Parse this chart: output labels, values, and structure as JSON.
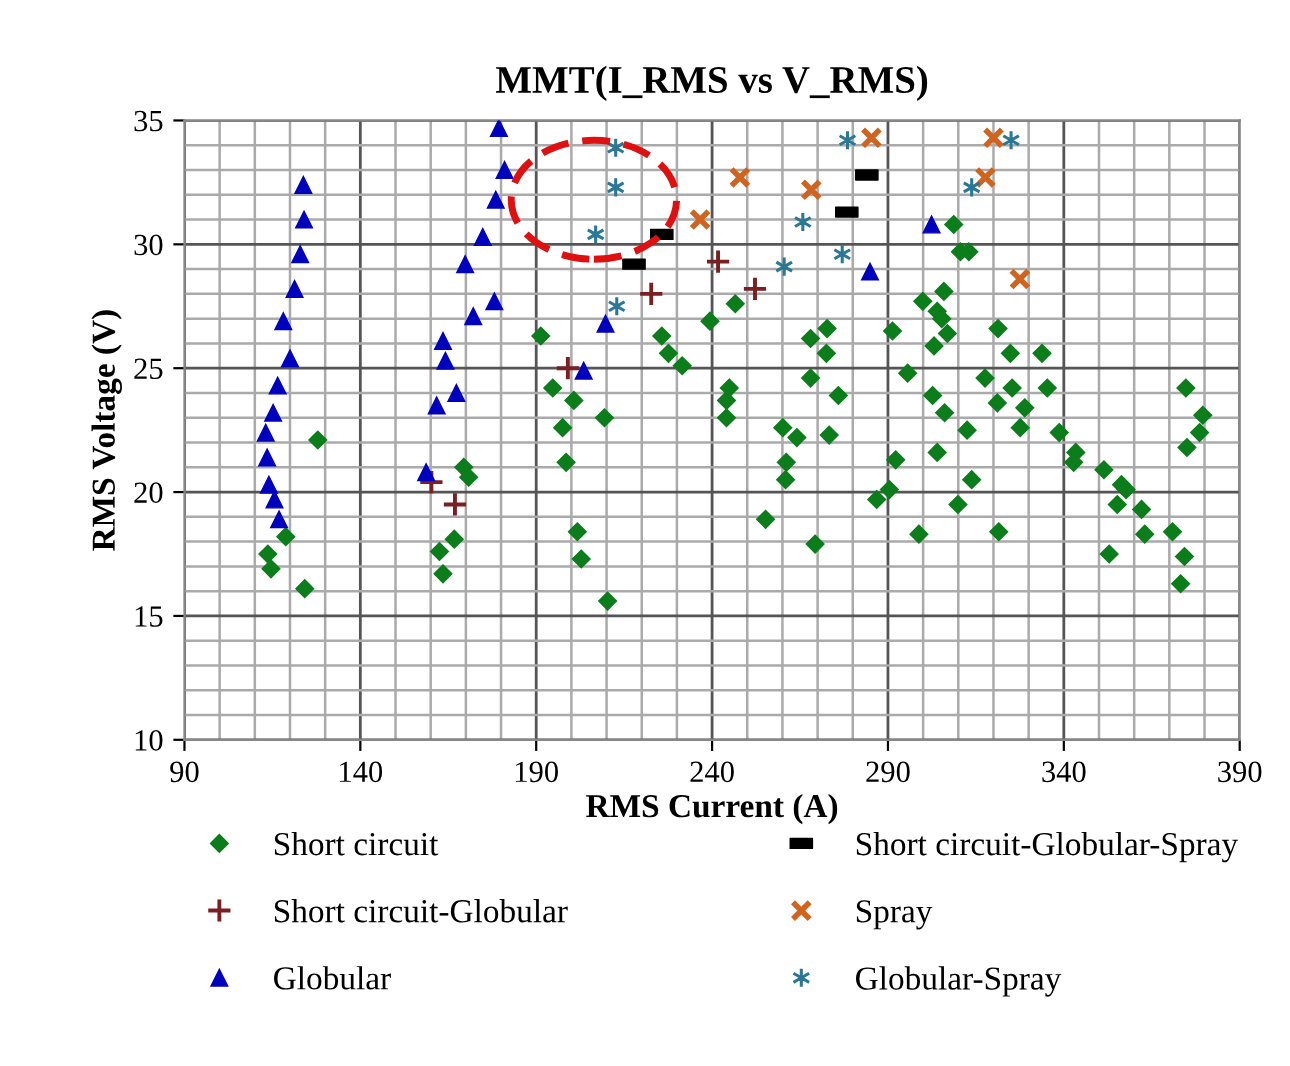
{
  "chart_data": {
    "type": "scatter",
    "title": "MMT(I_RMS vs V_RMS)",
    "xlabel": "RMS Current (A)",
    "ylabel": "RMS Voltage (V)",
    "xlim": [
      90,
      390
    ],
    "xticks": [
      90,
      140,
      190,
      240,
      290,
      340,
      390
    ],
    "ylim": [
      10,
      35
    ],
    "yticks": [
      10,
      15,
      20,
      25,
      30,
      35
    ],
    "grid": true,
    "legend": "bottom",
    "series": [
      {
        "name": "Short circuit",
        "color": "#0b7d1a",
        "marker": "diamond",
        "x": [
          118.8,
          113.7,
          114.6,
          124.2,
          127.9,
          169.4,
          170.8,
          166.7,
          162.5,
          163.5,
          191.3,
          194.7,
          200.7,
          197.5,
          198.5,
          209.4,
          201.7,
          202.8,
          210.3,
          225.7,
          227.6,
          231.5,
          239.4,
          246.6,
          244.9,
          244.1,
          244.1,
          255.2,
          260.1,
          264.1,
          261.1,
          260.9,
          269.3,
          268.0,
          272.7,
          272.5,
          268.0,
          275.9,
          273.3,
          286.8,
          308.7,
          310.6,
          313.0,
          305.9,
          299.9,
          304.0,
          305.3,
          306.9,
          303.1,
          291.3,
          321.3,
          324.8,
          333.8,
          295.6,
          302.7,
          317.6,
          325.3,
          306.1,
          321.1,
          328.9,
          335.3,
          312.5,
          327.6,
          338.7,
          304.0,
          292.2,
          343.4,
          342.8,
          313.8,
          290.4,
          351.4,
          356.4,
          357.7,
          355.2,
          362.1,
          309.9,
          363.0,
          370.9,
          298.8,
          321.5,
          352.9,
          374.3,
          373.2,
          374.7,
          379.5,
          378.6,
          375.0
        ],
        "values": [
          18.2,
          17.5,
          16.9,
          16.1,
          22.1,
          21.0,
          20.6,
          18.1,
          17.6,
          16.7,
          26.3,
          24.2,
          23.7,
          22.6,
          21.2,
          23.0,
          18.4,
          17.3,
          15.6,
          26.3,
          25.6,
          25.1,
          26.9,
          27.6,
          24.2,
          23.7,
          23.0,
          18.9,
          22.6,
          22.2,
          21.2,
          20.5,
          17.9,
          26.2,
          26.6,
          25.6,
          24.6,
          23.9,
          22.3,
          19.7,
          30.8,
          29.7,
          29.7,
          28.1,
          27.7,
          27.3,
          27.0,
          26.4,
          25.9,
          26.5,
          26.6,
          25.6,
          25.6,
          24.8,
          23.9,
          24.6,
          24.2,
          23.2,
          23.6,
          23.4,
          24.2,
          22.5,
          22.6,
          22.4,
          21.6,
          21.3,
          21.6,
          21.2,
          20.5,
          20.1,
          20.9,
          20.3,
          20.1,
          19.5,
          19.3,
          19.5,
          18.3,
          18.4,
          18.3,
          18.4,
          17.5,
          17.4,
          16.3,
          24.2,
          23.1,
          22.4,
          21.8
        ]
      },
      {
        "name": "Short circuit-Globular",
        "color": "#7a1f22",
        "marker": "plus",
        "x": [
          160.2,
          166.9,
          199.0,
          222.7,
          241.7,
          252.2
        ],
        "values": [
          20.4,
          19.5,
          25.0,
          28.0,
          29.3,
          28.2
        ]
      },
      {
        "name": "Globular",
        "color": "#0000bf",
        "marker": "triangle",
        "x": [
          123.8,
          124.0,
          122.9,
          121.3,
          118.1,
          120.0,
          116.5,
          115.2,
          113.1,
          113.5,
          114.0,
          115.6,
          116.9,
          179.4,
          181.0,
          178.5,
          174.8,
          169.8,
          178.1,
          172.1,
          163.5,
          164.2,
          167.3,
          161.7,
          158.7,
          209.7,
          203.5,
          284.9,
          302.4
        ],
        "values": [
          32.4,
          31.0,
          29.6,
          28.2,
          26.9,
          25.4,
          24.3,
          23.2,
          22.4,
          21.4,
          20.3,
          19.7,
          18.9,
          34.7,
          33.0,
          31.8,
          30.3,
          29.2,
          27.7,
          27.1,
          26.1,
          25.3,
          24.0,
          23.5,
          20.8,
          26.8,
          24.9,
          28.9,
          30.8
        ]
      },
      {
        "name": "Short circuit-Globular-Spray",
        "color": "#000000",
        "marker": "square",
        "x": [
          225.7,
          217.8,
          284.0,
          278.3
        ],
        "values": [
          30.4,
          29.2,
          32.8,
          31.3
        ]
      },
      {
        "name": "Spray",
        "color": "#d0641e",
        "marker": "x",
        "x": [
          247.9,
          236.6,
          268.2,
          285.3,
          320.0,
          317.7,
          327.5
        ],
        "values": [
          32.7,
          31.0,
          32.2,
          34.3,
          34.3,
          32.7,
          28.6
        ]
      },
      {
        "name": "Globular-Spray",
        "color": "#2a7896",
        "marker": "cross",
        "x": [
          212.6,
          212.6,
          206.9,
          212.9,
          265.8,
          260.5,
          278.5,
          277.0,
          325.0,
          313.8
        ],
        "values": [
          33.9,
          32.3,
          30.4,
          27.5,
          30.9,
          29.1,
          34.2,
          29.6,
          34.2,
          32.3
        ]
      }
    ]
  }
}
